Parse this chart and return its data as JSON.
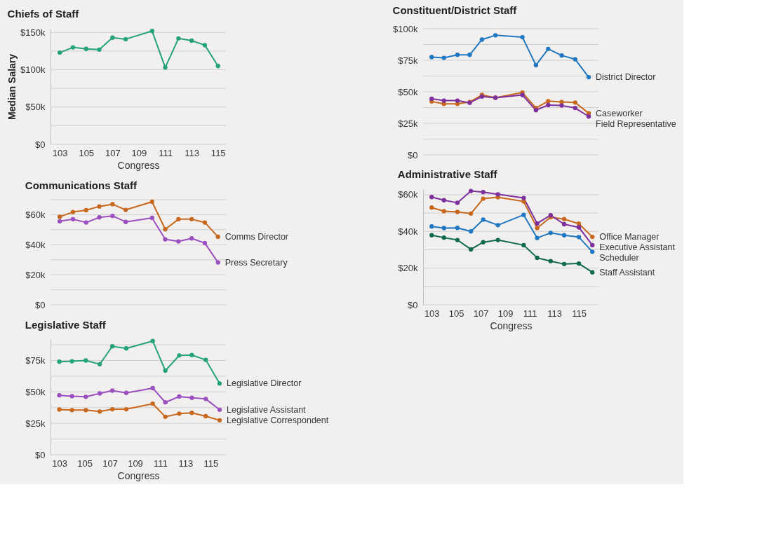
{
  "chart_data": [
    {
      "type": "line",
      "title": "Chiefs of Staff",
      "xlabel": "Congress",
      "ylabel": "Median Salary",
      "marker": "circle",
      "grid": "y",
      "legend": false,
      "x": [
        103,
        104,
        105,
        106,
        107,
        108,
        110,
        111,
        112,
        113,
        114,
        115
      ],
      "series": [
        {
          "color": "#23a27b",
          "values": [
            123,
            130,
            128,
            127,
            143,
            141,
            152,
            103,
            142,
            139,
            133,
            105
          ]
        }
      ],
      "xlim": [
        102.3,
        115.6
      ],
      "xticks": [
        103,
        105,
        107,
        109,
        111,
        113,
        115
      ],
      "ylim": [
        0,
        155
      ],
      "yticks": [
        {
          "value": 0,
          "label": "$0"
        },
        {
          "value": 25,
          "label": null
        },
        {
          "value": 50,
          "label": "$50k"
        },
        {
          "value": 75,
          "label": null
        },
        {
          "value": 100,
          "label": "$100k"
        },
        {
          "value": 125,
          "label": null
        },
        {
          "value": 150,
          "label": "$150k"
        }
      ]
    },
    {
      "type": "line",
      "title": "Constituent/District Staff",
      "marker": "circle",
      "grid": "y",
      "legend": false,
      "tick_labels": "y",
      "x": [
        103,
        104,
        105.1,
        106.1,
        107.1,
        108.2,
        110.4,
        111.5,
        112.5,
        113.6,
        114.7,
        115.8
      ],
      "series": [
        {
          "name": "District Director",
          "color": "#1f78c1",
          "values": [
            77.5,
            76.9,
            79.3,
            79.3,
            91.4,
            94.8,
            93.3,
            71.1,
            84,
            78.8,
            75.8,
            61.6
          ]
        },
        {
          "name": "Caseworker",
          "color": "#c8671e",
          "values": [
            42.3,
            40.4,
            40.4,
            41.9,
            47.5,
            45.3,
            49.4,
            37.2,
            42.6,
            41.9,
            41.5,
            33
          ]
        },
        {
          "name": "Field Representative",
          "color": "#7d2f9e",
          "values": [
            44.5,
            43,
            43,
            41.3,
            46.2,
            45.3,
            47.5,
            35.4,
            39.5,
            39.1,
            37.2,
            30.4
          ]
        }
      ],
      "xlim": [
        102.3,
        116.6
      ],
      "xticks": [
        103,
        105,
        107,
        109,
        111,
        113,
        115
      ],
      "ylim": [
        0,
        100
      ],
      "yticks": [
        {
          "value": 0,
          "label": "$0"
        },
        {
          "value": 12.5,
          "label": null
        },
        {
          "value": 25,
          "label": "$25k"
        },
        {
          "value": 37.5,
          "label": null
        },
        {
          "value": 50,
          "label": "$50k"
        },
        {
          "value": 62.5,
          "label": null
        },
        {
          "value": 75,
          "label": "$75k"
        },
        {
          "value": 87.5,
          "label": null
        },
        {
          "value": 100,
          "label": "$100k"
        }
      ]
    },
    {
      "type": "line",
      "title": "Communications Staff",
      "marker": "circle",
      "grid": "y",
      "legend": false,
      "tick_labels": "y",
      "x": [
        103,
        104,
        105,
        106,
        107,
        108,
        110,
        111,
        112,
        113,
        114,
        115
      ],
      "series": [
        {
          "name": "Comms Director",
          "color": "#c8671e",
          "values": [
            58.6,
            61.8,
            63,
            65.5,
            67,
            63.2,
            68.6,
            50.3,
            57,
            57,
            54.8,
            45.3
          ]
        },
        {
          "name": "Press Secretary",
          "color": "#9b4fc0",
          "values": [
            55.6,
            57,
            54.8,
            58.2,
            59.2,
            55.2,
            57.9,
            43.6,
            42.2,
            44.2,
            41.1,
            28.2
          ]
        }
      ],
      "xlim": [
        102.3,
        115.6
      ],
      "xticks": [
        103,
        105,
        107,
        109,
        111,
        113,
        115
      ],
      "ylim": [
        0,
        70
      ],
      "yticks": [
        {
          "value": 0,
          "label": "$0"
        },
        {
          "value": 10,
          "label": null
        },
        {
          "value": 20,
          "label": "$20k"
        },
        {
          "value": 30,
          "label": null
        },
        {
          "value": 40,
          "label": "$40k"
        },
        {
          "value": 50,
          "label": null
        },
        {
          "value": 60,
          "label": "$60k"
        },
        {
          "value": 70,
          "label": null
        }
      ]
    },
    {
      "type": "line",
      "title": "Administrative Staff",
      "xlabel": "Congress",
      "marker": "circle",
      "grid": "y",
      "legend": false,
      "x": [
        103,
        104,
        105.1,
        106.2,
        107.2,
        108.4,
        110.5,
        111.6,
        112.7,
        113.8,
        115,
        116.1
      ],
      "series": [
        {
          "name": "Office Manager",
          "color": "#c8671e",
          "values": [
            53,
            51,
            50.6,
            49.7,
            57.8,
            58.6,
            56.3,
            41.8,
            47.7,
            46.7,
            44.2,
            37
          ]
        },
        {
          "name": "Executive Assistant",
          "color": "#7d2f9e",
          "values": [
            58.7,
            57,
            55.6,
            62,
            61.4,
            60.2,
            58.2,
            44.3,
            48.8,
            43.9,
            42.2,
            32.5
          ]
        },
        {
          "name": "Scheduler",
          "color": "#1f78c1",
          "values": [
            42.7,
            41.8,
            41.9,
            40,
            46.4,
            43.4,
            49,
            36.4,
            39.2,
            37.9,
            36.9,
            28.9
          ]
        },
        {
          "name": "Staff Assistant",
          "color": "#0f6b4a",
          "values": [
            37.9,
            36.6,
            35.3,
            30.2,
            34.1,
            35.3,
            32.5,
            25.6,
            23.8,
            22.2,
            22.5,
            17.7
          ]
        }
      ],
      "xlim": [
        102.3,
        116.6
      ],
      "xticks": [
        103,
        105,
        107,
        109,
        111,
        113,
        115
      ],
      "ylim": [
        0,
        63
      ],
      "yticks": [
        {
          "value": 0,
          "label": "$0"
        },
        {
          "value": 10,
          "label": null
        },
        {
          "value": 20,
          "label": "$20k"
        },
        {
          "value": 30,
          "label": null
        },
        {
          "value": 40,
          "label": "$40k"
        },
        {
          "value": 50,
          "label": null
        },
        {
          "value": 60,
          "label": "$60k"
        }
      ]
    },
    {
      "type": "line",
      "title": "Legislative Staff",
      "xlabel": "Congress",
      "marker": "circle",
      "grid": "y",
      "legend": false,
      "x": [
        103,
        104,
        105.1,
        106.2,
        107.2,
        108.3,
        110.4,
        111.4,
        112.5,
        113.5,
        114.6,
        115.7
      ],
      "series": [
        {
          "name": "Legislative Director",
          "color": "#23a27b",
          "values": [
            74,
            74.4,
            75,
            72,
            86.3,
            84.6,
            90.5,
            66.9,
            79,
            79.3,
            75.5,
            56.7
          ]
        },
        {
          "name": "Legislative Assistant",
          "color": "#9b4fc0",
          "values": [
            47.3,
            46.6,
            46.1,
            48.8,
            51,
            49.2,
            53,
            41.7,
            46.3,
            45.3,
            44.4,
            35.8
          ]
        },
        {
          "name": "Legislative Correspondent",
          "color": "#c8671e",
          "values": [
            36,
            35.5,
            35.5,
            34.4,
            36.2,
            36.2,
            40.6,
            30.2,
            32.7,
            33.3,
            30.7,
            27.4
          ]
        }
      ],
      "xlim": [
        102.3,
        116.2
      ],
      "xticks": [
        103,
        105,
        107,
        109,
        111,
        113,
        115
      ],
      "ylim": [
        0,
        92
      ],
      "yticks": [
        {
          "value": 0,
          "label": "$0"
        },
        {
          "value": 12.5,
          "label": null
        },
        {
          "value": 25,
          "label": "$25k"
        },
        {
          "value": 37.5,
          "label": null
        },
        {
          "value": 50,
          "label": "$50k"
        },
        {
          "value": 62.5,
          "label": null
        },
        {
          "value": 75,
          "label": "$75k"
        },
        {
          "value": 87.5,
          "label": null
        }
      ]
    }
  ]
}
